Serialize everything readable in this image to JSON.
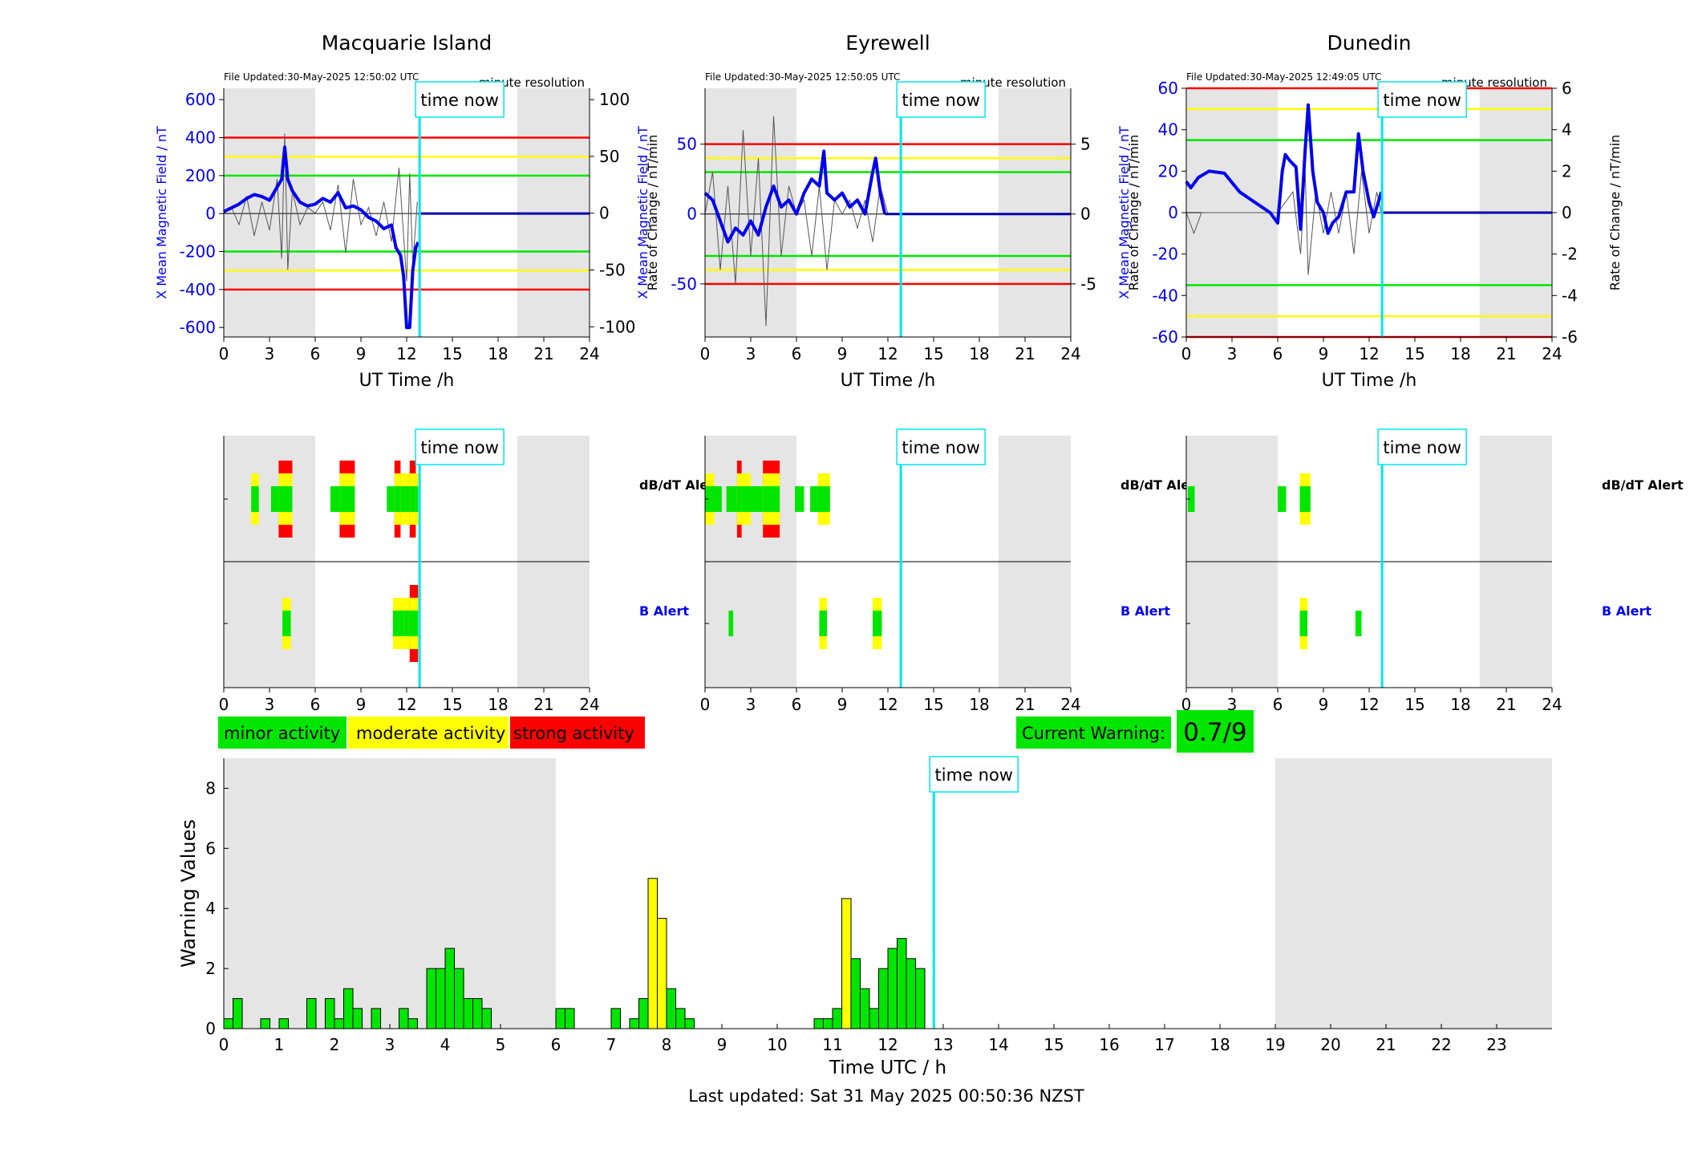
{
  "colors": {
    "minor": "#00e600",
    "moderate": "#ffff00",
    "strong": "#ff0000",
    "field": "#0000ee",
    "now": "#00e5ee",
    "night": "#e5e5e5",
    "threshold_green": "#00e600",
    "threshold_yellow": "#ffff00",
    "threshold_red": "#ff0000"
  },
  "common": {
    "time_now_label": "time now",
    "minute_resolution": "minute resolution",
    "dbdt_alert": "dB/dT Alert",
    "b_alert": "B Alert",
    "ut_xlabel": "UT Time /h",
    "hour_ticks": [
      "0",
      "3",
      "6",
      "9",
      "12",
      "15",
      "18",
      "21",
      "24"
    ],
    "time_now_h": 12.85
  },
  "stations": [
    {
      "name": "Macquarie Island",
      "file_updated": "File Updated:30-May-2025 12:50:02 UTC",
      "ylabel": "X Mean Magnetic Field / nT",
      "y2label": "Rate of Change / nT/min",
      "yticks": [
        "600",
        "400",
        "200",
        "0",
        "-200",
        "-400",
        "-600"
      ],
      "y2ticks": [
        "100",
        "50",
        "0",
        "-50",
        "-100"
      ],
      "night_h": [
        [
          0,
          6
        ],
        [
          19.25,
          24
        ]
      ]
    },
    {
      "name": "Eyrewell",
      "file_updated": "File Updated:30-May-2025 12:50:05 UTC",
      "ylabel": "X Mean Magnetic Field / nT",
      "y2label": "Rate of Change / nT/min",
      "yticks": [
        "50",
        "0",
        "-50"
      ],
      "y2ticks": [
        "5",
        "0",
        "-5"
      ],
      "night_h": [
        [
          0,
          6
        ],
        [
          19.25,
          24
        ]
      ]
    },
    {
      "name": "Dunedin",
      "file_updated": "File Updated:30-May-2025 12:49:05 UTC",
      "ylabel": "X Mean Magnetic Field / nT",
      "y2label": "Rate of Change / nT/min",
      "yticks": [
        "60",
        "40",
        "20",
        "0",
        "-20",
        "-40",
        "-60"
      ],
      "y2ticks": [
        "6",
        "4",
        "2",
        "0",
        "-2",
        "-4",
        "-6"
      ],
      "night_h": [
        [
          0,
          6
        ],
        [
          19.25,
          24
        ]
      ]
    }
  ],
  "legend": {
    "minor": "minor activity",
    "moderate": "moderate activity",
    "strong": "strong activity"
  },
  "current_warning": {
    "label": "Current Warning:",
    "value": "0.7/9"
  },
  "footer": "Last updated: Sat 31 May 2025 00:50:36 NZST",
  "chart_data": [
    {
      "type": "line",
      "title": "Macquarie Island",
      "xlabel": "UT Time /h",
      "ylabel": "X Mean Magnetic Field / nT",
      "y2label": "Rate of Change / nT/min",
      "xlim": [
        0,
        24
      ],
      "ylim": [
        -650,
        660
      ],
      "y2lim": [
        -109,
        110
      ],
      "thresholds": {
        "red": 400,
        "yellow": 300,
        "green": 200
      },
      "series": [
        {
          "name": "X Mean Magnetic Field",
          "x": [
            0,
            0.5,
            1,
            1.5,
            2,
            2.5,
            3,
            3.5,
            3.8,
            4,
            4.2,
            4.5,
            5,
            5.5,
            6,
            6.5,
            7,
            7.5,
            8,
            8.5,
            9,
            9.5,
            10,
            10.5,
            11,
            11.3,
            11.6,
            11.8,
            12,
            12.2,
            12.4,
            12.6,
            12.75
          ],
          "y": [
            10,
            30,
            50,
            80,
            100,
            90,
            70,
            140,
            180,
            350,
            180,
            120,
            60,
            40,
            50,
            80,
            60,
            110,
            30,
            40,
            20,
            -20,
            -40,
            -80,
            -60,
            -180,
            -220,
            -330,
            -600,
            -600,
            -300,
            -180,
            -150
          ]
        },
        {
          "name": "Rate of Change",
          "x": [
            0,
            0.5,
            1,
            1.5,
            2,
            2.5,
            3,
            3.5,
            3.8,
            4,
            4.2,
            4.5,
            5,
            5.5,
            6,
            6.5,
            7,
            7.5,
            8,
            8.5,
            9,
            9.5,
            10,
            10.5,
            11,
            11.5,
            12,
            12.2,
            12.4,
            12.7
          ],
          "y": [
            0,
            5,
            -10,
            15,
            -20,
            10,
            -15,
            30,
            -40,
            70,
            -50,
            20,
            -10,
            5,
            0,
            10,
            -15,
            25,
            -35,
            30,
            -10,
            5,
            -20,
            10,
            -25,
            40,
            -60,
            35,
            -45,
            10
          ]
        }
      ],
      "night_shading_h": [
        [
          0,
          6
        ],
        [
          19.25,
          24
        ]
      ],
      "time_now_h": 12.85
    },
    {
      "type": "line",
      "title": "Eyrewell",
      "xlabel": "UT Time /h",
      "ylabel": "X Mean Magnetic Field / nT",
      "y2label": "Rate of Change / nT/min",
      "xlim": [
        0,
        24
      ],
      "ylim": [
        -88,
        90
      ],
      "y2lim": [
        -8.8,
        9
      ],
      "thresholds": {
        "red": 50,
        "yellow": 40,
        "green": 30
      },
      "series": [
        {
          "name": "X Mean Magnetic Field",
          "x": [
            0,
            0.5,
            1,
            1.5,
            2,
            2.5,
            3,
            3.5,
            4,
            4.5,
            5,
            5.5,
            6,
            6.5,
            7,
            7.5,
            7.8,
            8,
            8.5,
            9,
            9.5,
            10,
            10.5,
            11,
            11.2,
            11.5,
            11.8
          ],
          "y": [
            15,
            10,
            -5,
            -20,
            -10,
            -15,
            -5,
            -15,
            5,
            20,
            5,
            10,
            0,
            15,
            25,
            20,
            45,
            15,
            10,
            15,
            5,
            10,
            0,
            30,
            40,
            15,
            0
          ]
        },
        {
          "name": "Rate of Change",
          "x": [
            0,
            0.5,
            1,
            1.5,
            2,
            2.5,
            3,
            3.5,
            4,
            4.5,
            5,
            5.5,
            6,
            6.5,
            7,
            7.5,
            8,
            8.5,
            9,
            9.5,
            10,
            10.5,
            11,
            11.5,
            12
          ],
          "y": [
            0,
            3,
            -4,
            2,
            -5,
            6,
            -3,
            4,
            -8,
            7,
            -3,
            2,
            0,
            1,
            -3,
            2,
            -4,
            1,
            0,
            1,
            -1,
            1,
            -2,
            2,
            0
          ]
        }
      ],
      "night_shading_h": [
        [
          0,
          6
        ],
        [
          19.25,
          24
        ]
      ],
      "time_now_h": 12.85
    },
    {
      "type": "line",
      "title": "Dunedin",
      "xlabel": "UT Time /h",
      "ylabel": "X Mean Magnetic Field / nT",
      "y2label": "Rate of Change / nT/min",
      "xlim": [
        0,
        24
      ],
      "ylim": [
        -60,
        60
      ],
      "y2lim": [
        -6,
        6
      ],
      "thresholds": {
        "red": 60,
        "yellow": 50,
        "green": 35
      },
      "series": [
        {
          "name": "X Mean Magnetic Field",
          "x": [
            0,
            0.3,
            0.8,
            1.5,
            2.5,
            3.5,
            4.5,
            5.5,
            6,
            6.3,
            6.5,
            6.8,
            7.2,
            7.5,
            7.8,
            8,
            8.3,
            8.6,
            9,
            9.3,
            9.6,
            10,
            10.5,
            11,
            11.3,
            11.6,
            12,
            12.3,
            12.6,
            12.8
          ],
          "y": [
            15,
            12,
            17,
            20,
            19,
            10,
            5,
            0,
            -5,
            20,
            28,
            25,
            22,
            -8,
            30,
            52,
            20,
            5,
            0,
            -10,
            -5,
            -2,
            10,
            10,
            38,
            20,
            5,
            -2,
            5,
            10
          ]
        },
        {
          "name": "Rate of Change",
          "x": [
            0,
            0.5,
            1,
            2,
            3,
            4,
            5,
            6,
            7,
            7.5,
            7.8,
            8,
            8.5,
            9,
            9.5,
            10,
            10.5,
            11,
            11.5,
            12,
            12.5,
            12.8
          ],
          "y": [
            0,
            -1,
            0,
            0,
            0,
            0,
            0,
            0,
            1,
            -2,
            2,
            -3,
            1,
            -1,
            1,
            -1,
            1,
            -2,
            2,
            -1,
            1,
            0
          ]
        }
      ],
      "night_shading_h": [
        [
          0,
          6
        ],
        [
          19.25,
          24
        ]
      ],
      "time_now_h": 12.85
    },
    {
      "type": "bar",
      "title": "",
      "xlabel": "Time UTC / h",
      "ylabel": "Warning Values",
      "xlim": [
        0,
        24
      ],
      "ylim": [
        0,
        9
      ],
      "x_ticks": [
        0,
        1,
        2,
        3,
        4,
        5,
        6,
        7,
        8,
        9,
        10,
        11,
        12,
        13,
        14,
        15,
        16,
        17,
        18,
        19,
        20,
        21,
        22,
        23
      ],
      "y_ticks": [
        0,
        2,
        4,
        6,
        8
      ],
      "bar_width_h": 0.1667,
      "night_shading_h": [
        [
          0,
          6
        ],
        [
          19,
          24
        ]
      ],
      "time_now_h": 12.83,
      "bars": [
        {
          "x": 0,
          "v": 0.33,
          "c": "minor"
        },
        {
          "x": 0.167,
          "v": 1,
          "c": "minor"
        },
        {
          "x": 0.667,
          "v": 0.33,
          "c": "minor"
        },
        {
          "x": 1,
          "v": 0.33,
          "c": "minor"
        },
        {
          "x": 1.5,
          "v": 1,
          "c": "minor"
        },
        {
          "x": 1.833,
          "v": 1,
          "c": "minor"
        },
        {
          "x": 2,
          "v": 0.33,
          "c": "minor"
        },
        {
          "x": 2.167,
          "v": 1.33,
          "c": "minor"
        },
        {
          "x": 2.333,
          "v": 0.67,
          "c": "minor"
        },
        {
          "x": 2.667,
          "v": 0.67,
          "c": "minor"
        },
        {
          "x": 3.167,
          "v": 0.67,
          "c": "minor"
        },
        {
          "x": 3.333,
          "v": 0.33,
          "c": "minor"
        },
        {
          "x": 3.667,
          "v": 2,
          "c": "minor"
        },
        {
          "x": 3.833,
          "v": 2,
          "c": "minor"
        },
        {
          "x": 4,
          "v": 2.67,
          "c": "minor"
        },
        {
          "x": 4.167,
          "v": 2,
          "c": "minor"
        },
        {
          "x": 4.333,
          "v": 1,
          "c": "minor"
        },
        {
          "x": 4.5,
          "v": 1,
          "c": "minor"
        },
        {
          "x": 4.667,
          "v": 0.67,
          "c": "minor"
        },
        {
          "x": 6,
          "v": 0.67,
          "c": "minor"
        },
        {
          "x": 6.167,
          "v": 0.67,
          "c": "minor"
        },
        {
          "x": 7,
          "v": 0.67,
          "c": "minor"
        },
        {
          "x": 7.333,
          "v": 0.33,
          "c": "minor"
        },
        {
          "x": 7.5,
          "v": 1,
          "c": "minor"
        },
        {
          "x": 7.667,
          "v": 5,
          "c": "moderate"
        },
        {
          "x": 7.833,
          "v": 3.67,
          "c": "moderate"
        },
        {
          "x": 8,
          "v": 1.33,
          "c": "minor"
        },
        {
          "x": 8.167,
          "v": 0.67,
          "c": "minor"
        },
        {
          "x": 8.333,
          "v": 0.33,
          "c": "minor"
        },
        {
          "x": 10.667,
          "v": 0.33,
          "c": "minor"
        },
        {
          "x": 10.833,
          "v": 0.33,
          "c": "minor"
        },
        {
          "x": 11,
          "v": 0.67,
          "c": "minor"
        },
        {
          "x": 11.167,
          "v": 4.33,
          "c": "moderate"
        },
        {
          "x": 11.333,
          "v": 2.33,
          "c": "minor"
        },
        {
          "x": 11.5,
          "v": 1.33,
          "c": "minor"
        },
        {
          "x": 11.667,
          "v": 0.67,
          "c": "minor"
        },
        {
          "x": 11.833,
          "v": 2,
          "c": "minor"
        },
        {
          "x": 12,
          "v": 2.67,
          "c": "minor"
        },
        {
          "x": 12.167,
          "v": 3,
          "c": "minor"
        },
        {
          "x": 12.333,
          "v": 2.33,
          "c": "minor"
        },
        {
          "x": 12.5,
          "v": 2,
          "c": "minor"
        }
      ]
    }
  ],
  "alerts": [
    {
      "dbdt": [
        {
          "s": 1.8,
          "e": 2.3,
          "l": 2
        },
        {
          "s": 3.1,
          "e": 3.6,
          "l": 1
        },
        {
          "s": 3.6,
          "e": 4.5,
          "l": 3
        },
        {
          "s": 7,
          "e": 7.6,
          "l": 1
        },
        {
          "s": 7.6,
          "e": 8.6,
          "l": 3
        },
        {
          "s": 10.7,
          "e": 11.2,
          "l": 1
        },
        {
          "s": 11.2,
          "e": 11.6,
          "l": 3
        },
        {
          "s": 11.6,
          "e": 12.2,
          "l": 2
        },
        {
          "s": 12.2,
          "e": 12.6,
          "l": 3
        },
        {
          "s": 12.6,
          "e": 12.75,
          "l": 2
        }
      ],
      "b": [
        {
          "s": 3.85,
          "e": 4.4,
          "l": 2
        },
        {
          "s": 11.1,
          "e": 11.8,
          "l": 2
        },
        {
          "s": 11.8,
          "e": 12.2,
          "l": 2
        },
        {
          "s": 12.2,
          "e": 12.75,
          "l": 3
        }
      ]
    },
    {
      "dbdt": [
        {
          "s": 0,
          "e": 0.6,
          "l": 2
        },
        {
          "s": 0.6,
          "e": 1.1,
          "l": 1
        },
        {
          "s": 1.4,
          "e": 2.1,
          "l": 1
        },
        {
          "s": 2.1,
          "e": 2.4,
          "l": 3
        },
        {
          "s": 2.4,
          "e": 3.0,
          "l": 2
        },
        {
          "s": 3.0,
          "e": 3.8,
          "l": 1
        },
        {
          "s": 3.8,
          "e": 4.9,
          "l": 3
        },
        {
          "s": 5.9,
          "e": 6.5,
          "l": 1
        },
        {
          "s": 6.9,
          "e": 7.4,
          "l": 1
        },
        {
          "s": 7.4,
          "e": 8.2,
          "l": 2
        }
      ],
      "b": [
        {
          "s": 1.55,
          "e": 1.85,
          "l": 1
        },
        {
          "s": 7.5,
          "e": 8.0,
          "l": 2
        },
        {
          "s": 11.0,
          "e": 11.6,
          "l": 2
        }
      ]
    },
    {
      "dbdt": [
        {
          "s": 0.1,
          "e": 0.55,
          "l": 1
        },
        {
          "s": 6.0,
          "e": 6.55,
          "l": 1
        },
        {
          "s": 7.45,
          "e": 8.15,
          "l": 2
        }
      ],
      "b": [
        {
          "s": 7.45,
          "e": 7.95,
          "l": 2
        },
        {
          "s": 11.1,
          "e": 11.5,
          "l": 1
        }
      ]
    }
  ]
}
